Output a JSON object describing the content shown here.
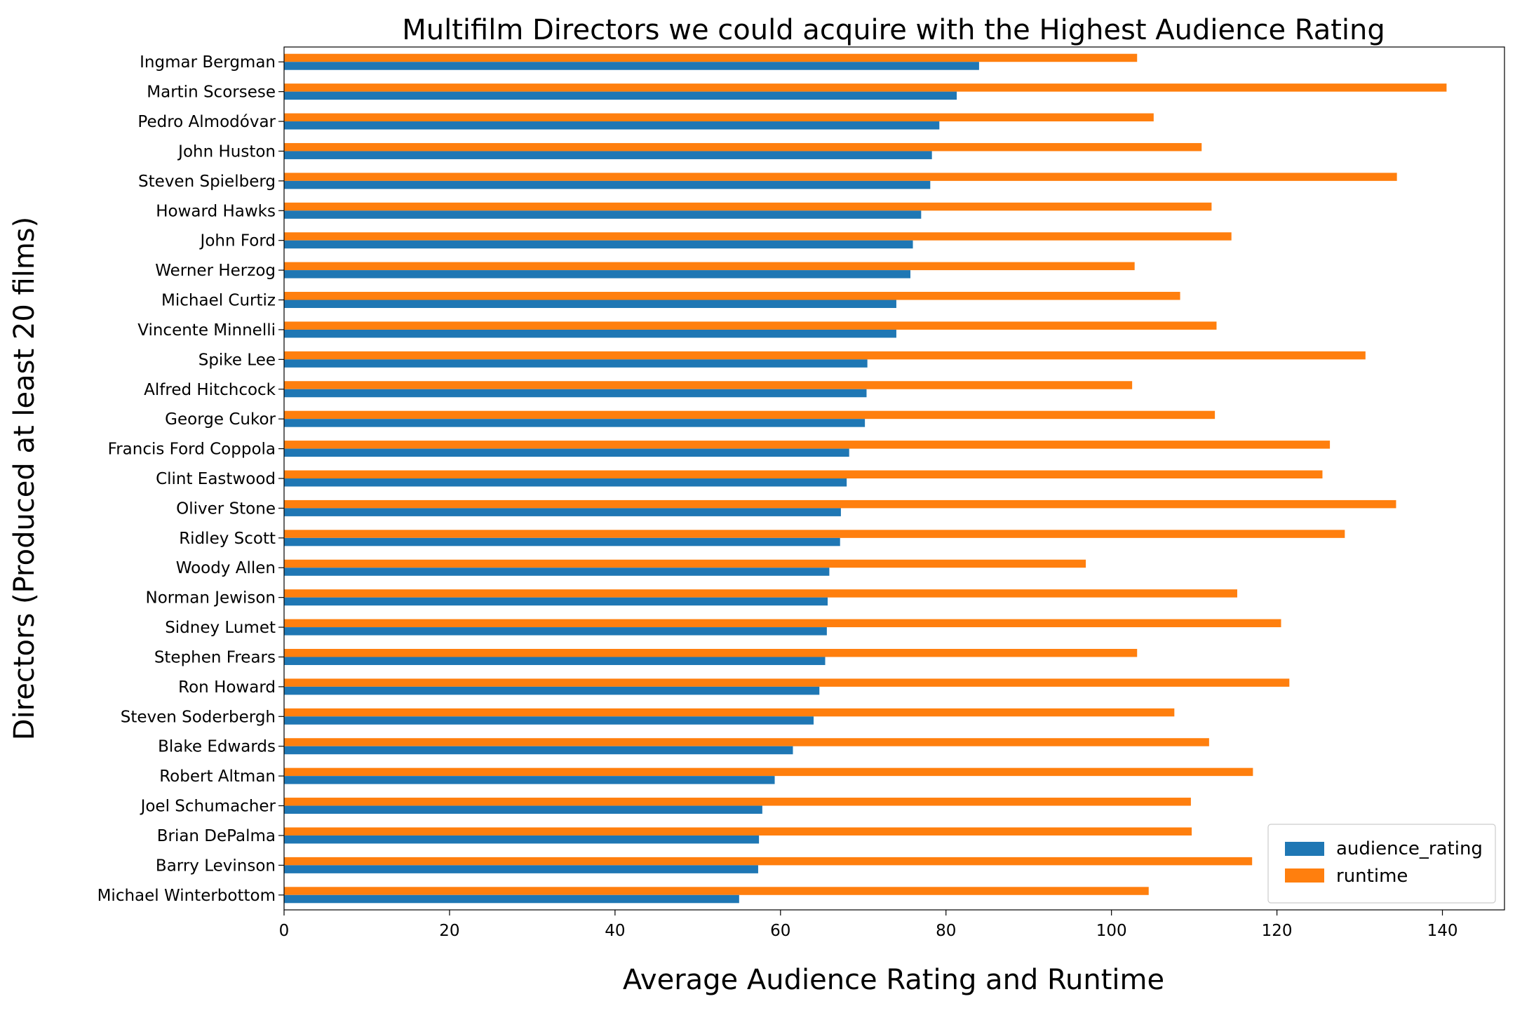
{
  "chart_data": {
    "type": "bar",
    "orientation": "horizontal",
    "title": "Multifilm Directors we could acquire with the Highest Audience Rating",
    "xlabel": "Average Audience Rating and Runtime",
    "ylabel": "Directors (Produced at least 20 films)",
    "xlim": [
      0,
      147.5
    ],
    "xticks": [
      0,
      20,
      40,
      60,
      80,
      100,
      120,
      140
    ],
    "xtick_labels": [
      "0",
      "20",
      "40",
      "60",
      "80",
      "100",
      "120",
      "140"
    ],
    "grid": false,
    "legend_position": "bottom-right",
    "categories": [
      "Ingmar Bergman",
      "Martin Scorsese",
      "Pedro Almodóvar",
      "John Huston",
      "Steven Spielberg",
      "Howard Hawks",
      "John Ford",
      "Werner Herzog",
      "Michael Curtiz",
      "Vincente Minnelli",
      "Spike Lee",
      "Alfred Hitchcock",
      "George Cukor",
      "Francis Ford Coppola",
      "Clint Eastwood",
      "Oliver Stone",
      "Ridley Scott",
      "Woody Allen",
      "Norman Jewison",
      "Sidney Lumet",
      "Stephen Frears",
      "Ron Howard",
      "Steven Soderbergh",
      "Blake Edwards",
      "Robert Altman",
      "Joel Schumacher",
      "Brian DePalma",
      "Barry Levinson",
      "Michael Winterbottom"
    ],
    "series": [
      {
        "name": "audience_rating",
        "color": "#1f77b4",
        "values": [
          84.0,
          81.3,
          79.2,
          78.3,
          78.1,
          77.0,
          76.0,
          75.7,
          74.0,
          74.0,
          70.5,
          70.4,
          70.2,
          68.3,
          68.0,
          67.3,
          67.2,
          65.9,
          65.7,
          65.6,
          65.4,
          64.7,
          64.0,
          61.5,
          59.3,
          57.8,
          57.4,
          57.3,
          55.0
        ]
      },
      {
        "name": "runtime",
        "color": "#ff7f0e",
        "values": [
          103.1,
          140.5,
          105.1,
          110.9,
          134.5,
          112.1,
          114.5,
          102.8,
          108.3,
          112.7,
          130.7,
          102.5,
          112.5,
          126.4,
          125.5,
          134.4,
          128.2,
          96.9,
          115.2,
          120.5,
          103.1,
          121.5,
          107.6,
          111.8,
          117.1,
          109.6,
          109.7,
          117.0,
          104.5
        ]
      }
    ]
  }
}
